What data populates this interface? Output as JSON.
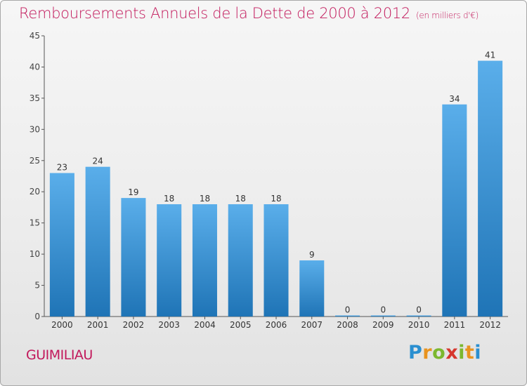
{
  "chart_data": {
    "type": "bar",
    "title": "Remboursements Annuels de la Dette de 2000 à 2012",
    "subtitle": "(en milliers d'€)",
    "categories": [
      "2000",
      "2001",
      "2002",
      "2003",
      "2004",
      "2005",
      "2006",
      "2007",
      "2008",
      "2009",
      "2010",
      "2011",
      "2012"
    ],
    "values": [
      23,
      24,
      19,
      18,
      18,
      18,
      18,
      9,
      0,
      0,
      0,
      34,
      41
    ],
    "ylim": [
      0,
      45
    ],
    "yticks": [
      0,
      5,
      10,
      15,
      20,
      25,
      30,
      35,
      40,
      45
    ],
    "grid": false,
    "bar_color_top": "#5aaeea",
    "bar_color_bottom": "#1f74b6"
  },
  "footer": {
    "commune": "GUIMILIAU",
    "logo_letters": [
      "P",
      "r",
      "o",
      "x",
      "i",
      "t",
      "i"
    ],
    "logo_colors": [
      "#2a8fd0",
      "#e8931f",
      "#7cb82f",
      "#d6372e",
      "#7cb82f",
      "#e8931f",
      "#2a8fd0"
    ]
  }
}
